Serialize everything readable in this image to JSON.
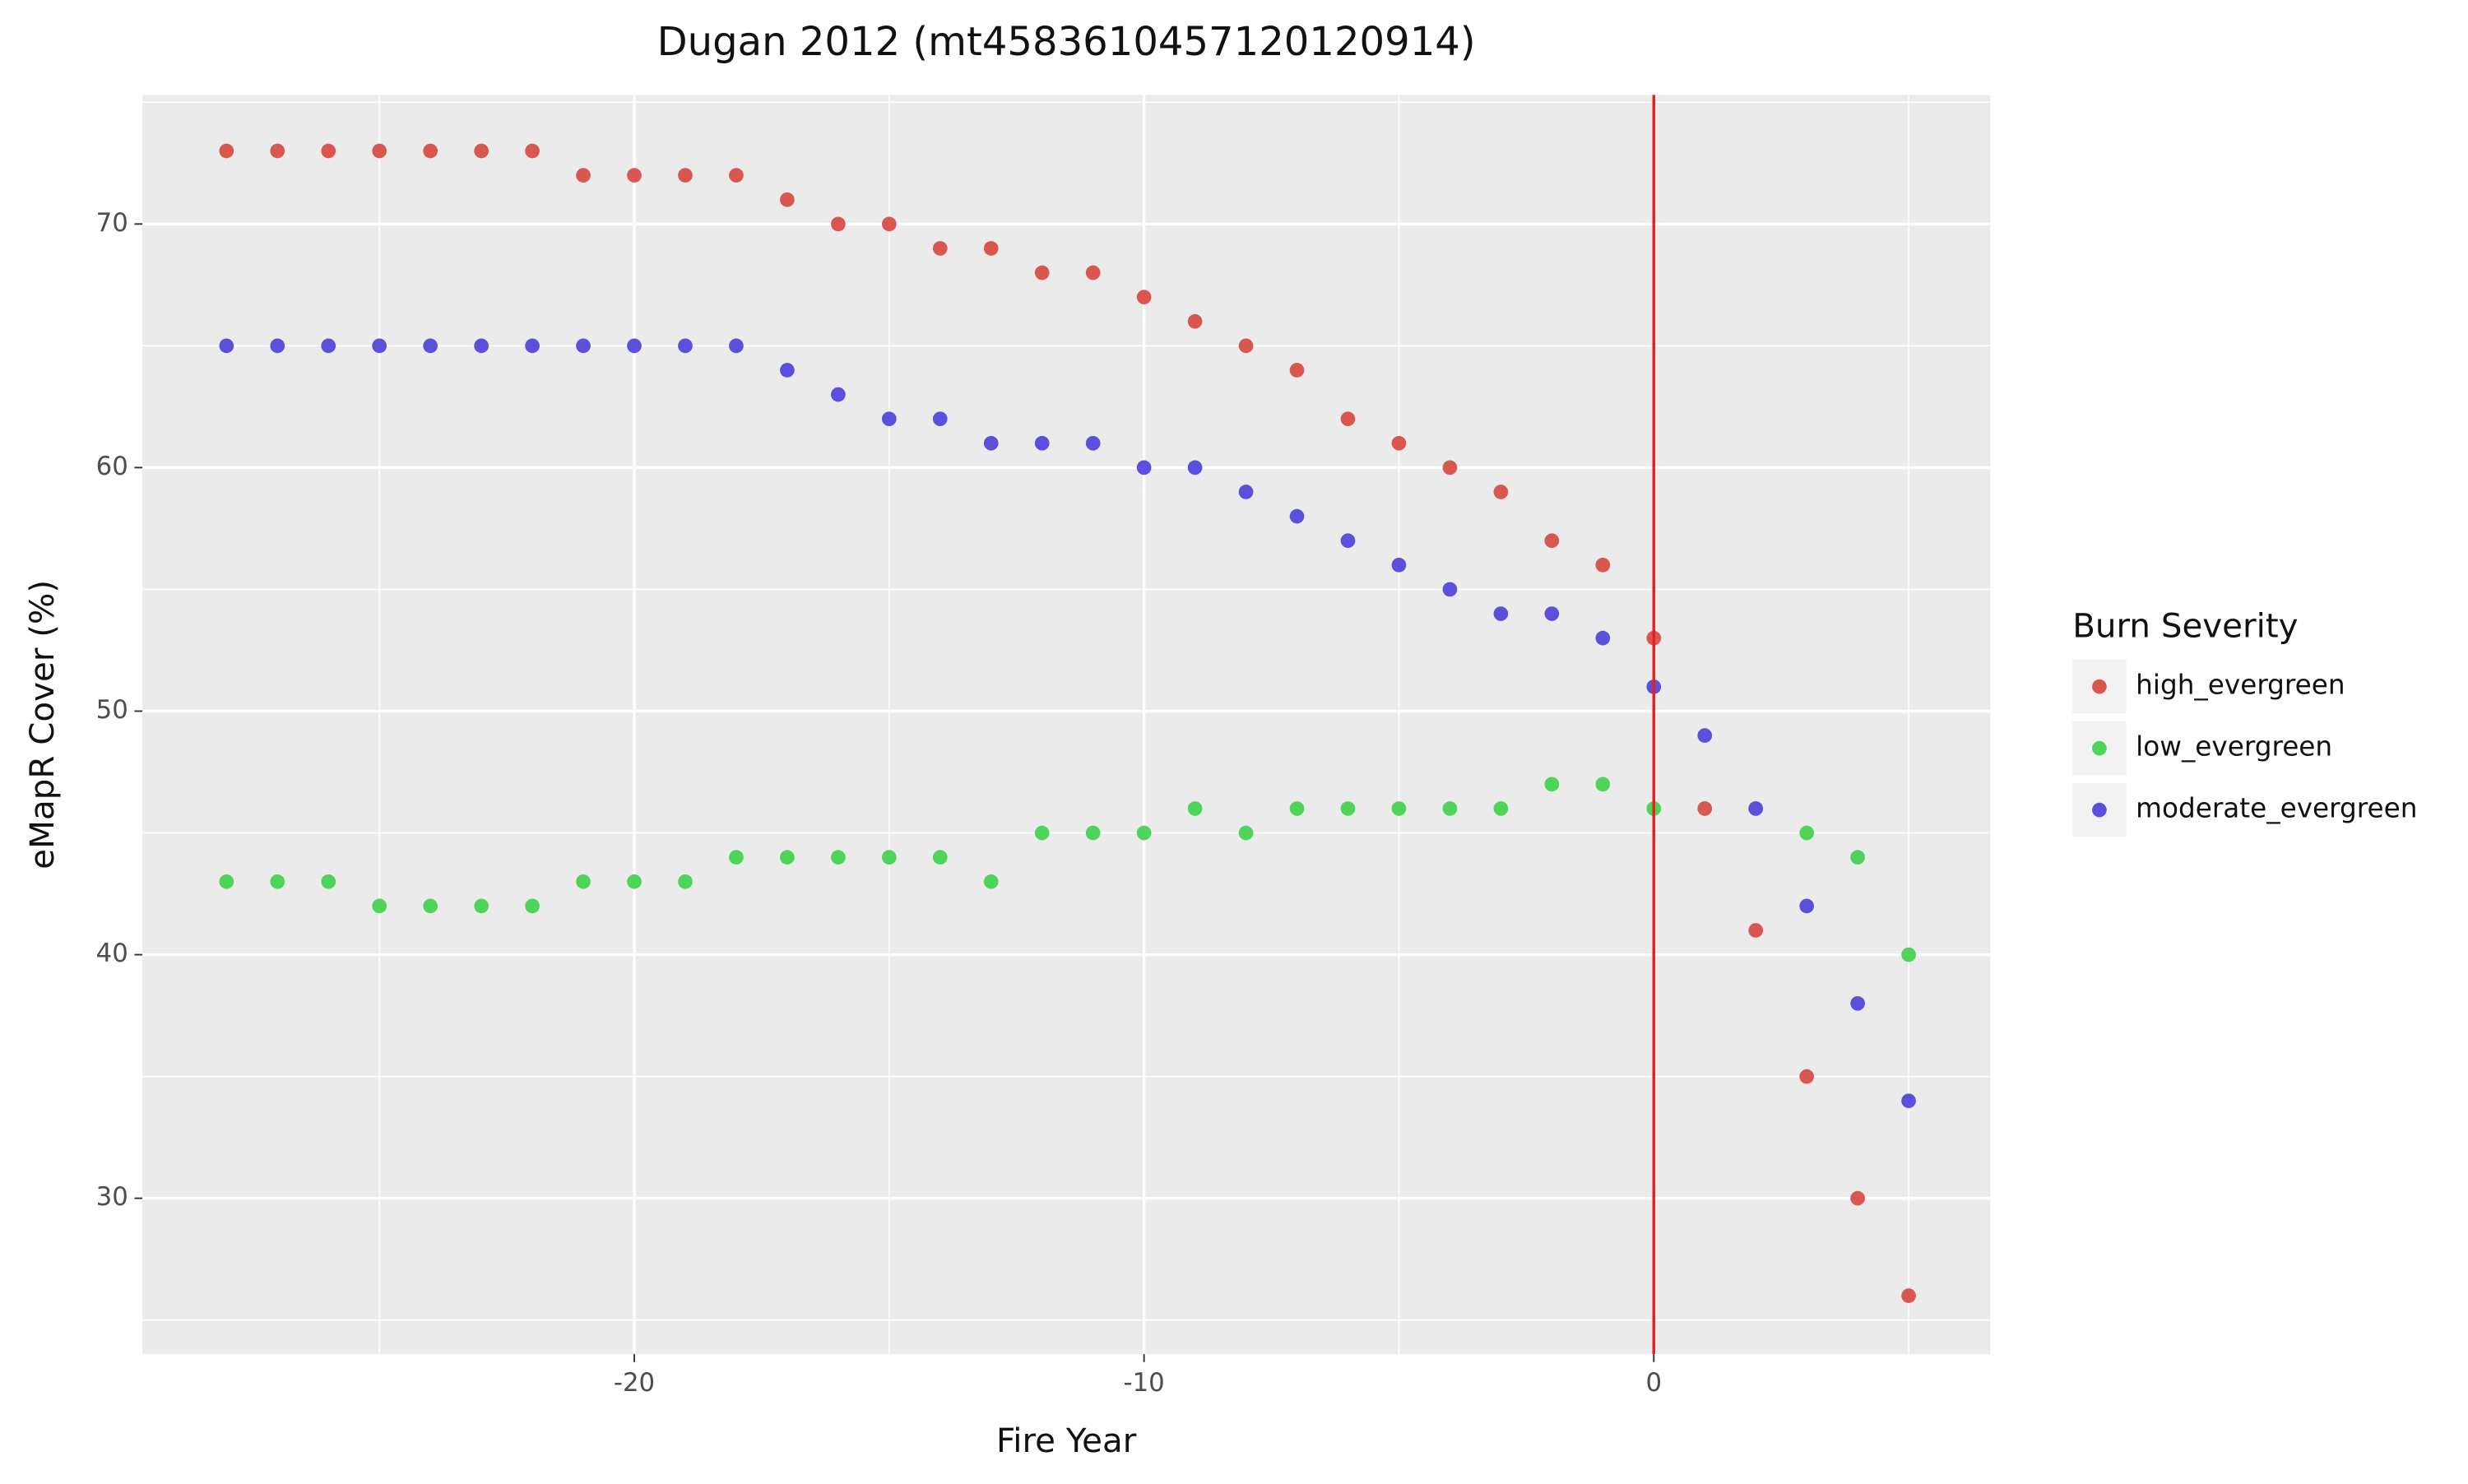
{
  "chart_data": {
    "type": "scatter",
    "title": "Dugan 2012 (mt4583610457120120914)",
    "x_label": "Fire Year",
    "y_label": "eMapR Cover (%)",
    "legend_title": "Burn Severity",
    "legend": "right",
    "x": [
      -28,
      -27,
      -26,
      -25,
      -24,
      -23,
      -22,
      -21,
      -20,
      -19,
      -18,
      -17,
      -16,
      -15,
      -14,
      -13,
      -12,
      -11,
      -10,
      -9,
      -8,
      -7,
      -6,
      -5,
      -4,
      -3,
      -2,
      -1,
      0,
      1,
      2,
      3,
      4,
      5
    ],
    "series": [
      {
        "name": "high_evergreen",
        "color": "#d9574f",
        "values": [
          73,
          73,
          73,
          73,
          73,
          73,
          73,
          72,
          72,
          72,
          72,
          71,
          70,
          70,
          69,
          69,
          68,
          68,
          67,
          66,
          65,
          64,
          62,
          61,
          60,
          59,
          57,
          56,
          53,
          46,
          41,
          35,
          30,
          26
        ]
      },
      {
        "name": "low_evergreen",
        "color": "#4fd45a",
        "values": [
          43,
          43,
          43,
          42,
          42,
          42,
          42,
          43,
          43,
          43,
          44,
          44,
          44,
          44,
          44,
          43,
          45,
          45,
          45,
          46,
          45,
          46,
          46,
          46,
          46,
          46,
          47,
          47,
          46,
          46,
          46,
          45,
          44,
          40
        ]
      },
      {
        "name": "moderate_evergreen",
        "color": "#5b4fdc",
        "values": [
          65,
          65,
          65,
          65,
          65,
          65,
          65,
          65,
          65,
          65,
          65,
          64,
          63,
          62,
          62,
          61,
          61,
          61,
          60,
          60,
          59,
          58,
          57,
          56,
          55,
          54,
          54,
          53,
          51,
          49,
          46,
          42,
          38,
          34
        ]
      }
    ],
    "draw_order": [
      1,
      0,
      2
    ],
    "vline": {
      "x": 0,
      "color": "#e8211c"
    },
    "xlim": [
      -29.65,
      6.6
    ],
    "ylim": [
      23.6,
      75.3
    ],
    "xticks": [
      -20,
      -10,
      0
    ],
    "yticks": [
      30,
      40,
      50,
      60,
      70
    ],
    "grid": true
  }
}
